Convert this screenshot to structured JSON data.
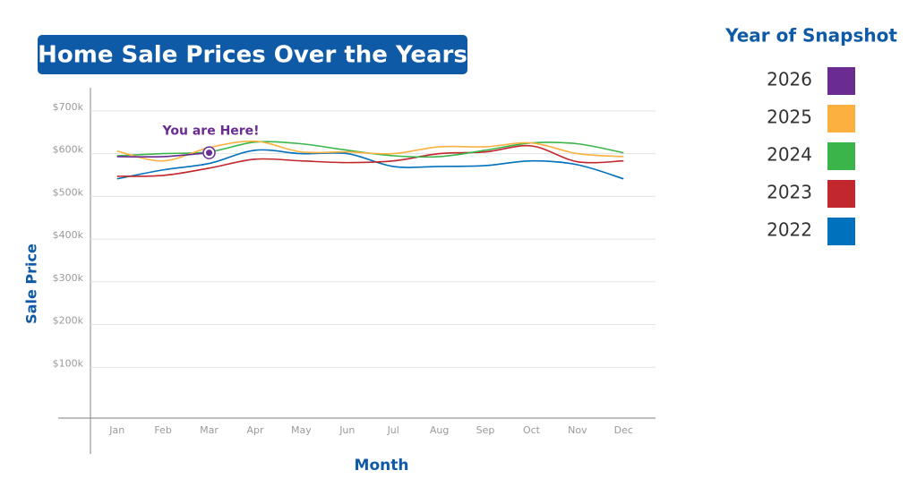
{
  "chart_data": {
    "type": "line",
    "title": "Home Sale Prices Over the Years",
    "x_label": "Month",
    "y_label": "Sale Price",
    "legend_title": "Year of Snapshot",
    "annotation": "You are Here!",
    "categories": [
      "Jan",
      "Feb",
      "Mar",
      "Apr",
      "May",
      "Jun",
      "Jul",
      "Aug",
      "Sep",
      "Oct",
      "Nov",
      "Dec"
    ],
    "series": [
      {
        "name": "2026",
        "color": "#6a2c91",
        "values": [
          593000,
          593000,
          602000,
          null,
          null,
          null,
          null,
          null,
          null,
          null,
          null,
          null
        ]
      },
      {
        "name": "2025",
        "color": "#fbb040",
        "values": [
          606000,
          583000,
          614000,
          629000,
          604000,
          604000,
          600000,
          616000,
          616000,
          625000,
          600000,
          593000
        ]
      },
      {
        "name": "2024",
        "color": "#3ab54a",
        "values": [
          595000,
          600000,
          604000,
          627000,
          623000,
          608000,
          595000,
          593000,
          608000,
          625000,
          623000,
          602000
        ]
      },
      {
        "name": "2023",
        "color": "#c1272d",
        "values": [
          547000,
          549000,
          566000,
          587000,
          583000,
          579000,
          583000,
          600000,
          604000,
          618000,
          581000,
          583000
        ]
      },
      {
        "name": "2022",
        "color": "#0071bc",
        "values": [
          541000,
          562000,
          577000,
          608000,
          600000,
          600000,
          570000,
          570000,
          572000,
          583000,
          574000,
          541000
        ]
      }
    ],
    "ylim": [
      0,
      750000
    ],
    "yticks": [
      {
        "value": 100000,
        "label": "$100k"
      },
      {
        "value": 200000,
        "label": "$200k"
      },
      {
        "value": 300000,
        "label": "$300k"
      },
      {
        "value": 400000,
        "label": "$400k"
      },
      {
        "value": 500000,
        "label": "$500k"
      },
      {
        "value": 600000,
        "label": "$600k"
      },
      {
        "value": 700000,
        "label": "$700k"
      }
    ],
    "grid": true
  }
}
